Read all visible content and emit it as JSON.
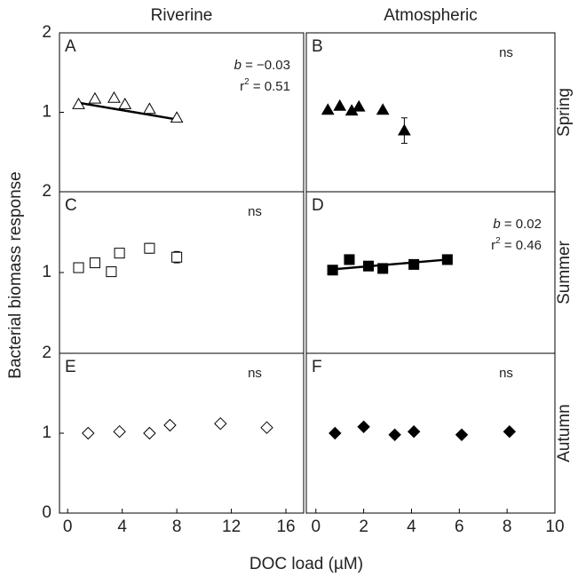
{
  "figure": {
    "y_label": "Bacterial biomass response",
    "x_label": "DOC load (µM)",
    "column_titles": [
      "Riverine",
      "Atmospheric"
    ],
    "row_titles": [
      "Spring",
      "Summer",
      "Autumn"
    ]
  },
  "chart_data": [
    {
      "type": "scatter",
      "panel": "A",
      "marker": "triangle",
      "filled": false,
      "color": "#000000",
      "x": [
        0.8,
        2,
        3.4,
        4.2,
        6,
        8
      ],
      "values": [
        1.1,
        1.17,
        1.18,
        1.1,
        1.04,
        0.93
      ],
      "fit": {
        "x": [
          0.8,
          8
        ],
        "y": [
          1.12,
          0.91
        ]
      },
      "annotation": [
        [
          {
            "text": "b",
            "italic": true
          },
          {
            "text": " = −0.03"
          }
        ],
        [
          {
            "text": "r"
          },
          {
            "text": "2",
            "sup": true
          },
          {
            "text": " = 0.51"
          }
        ]
      ],
      "xlim": [
        -0.6,
        17.3
      ],
      "ylim": [
        0,
        2
      ],
      "yticks": [
        1,
        2
      ]
    },
    {
      "type": "scatter",
      "panel": "B",
      "marker": "triangle",
      "filled": true,
      "color": "#000000",
      "x": [
        0.5,
        1.0,
        1.5,
        1.8,
        2.8,
        3.7
      ],
      "values": [
        1.03,
        1.08,
        1.02,
        1.07,
        1.03,
        0.77
      ],
      "errors": [
        null,
        null,
        null,
        null,
        null,
        0.16
      ],
      "annotation": [
        [
          {
            "text": "ns"
          }
        ]
      ],
      "xlim": [
        -0.4,
        10
      ],
      "ylim": [
        0,
        2
      ]
    },
    {
      "type": "scatter",
      "panel": "C",
      "marker": "square",
      "filled": false,
      "color": "#000000",
      "x": [
        0.8,
        2,
        3.2,
        3.8,
        6,
        8
      ],
      "values": [
        1.06,
        1.12,
        1.01,
        1.24,
        1.3,
        1.19
      ],
      "errors": [
        0.04,
        0.03,
        null,
        0.05,
        0.06,
        0.07
      ],
      "annotation": [
        [
          {
            "text": "ns"
          }
        ]
      ],
      "xlim": [
        -0.6,
        17.3
      ],
      "ylim": [
        0,
        2
      ],
      "yticks": [
        1,
        2
      ]
    },
    {
      "type": "scatter",
      "panel": "D",
      "marker": "square",
      "filled": true,
      "color": "#000000",
      "x": [
        0.7,
        1.4,
        2.2,
        2.8,
        4.1,
        5.5
      ],
      "values": [
        1.03,
        1.16,
        1.08,
        1.05,
        1.1,
        1.16
      ],
      "fit": {
        "x": [
          0.7,
          5.5
        ],
        "y": [
          1.04,
          1.16
        ]
      },
      "annotation": [
        [
          {
            "text": "b",
            "italic": true
          },
          {
            "text": " = 0.02"
          }
        ],
        [
          {
            "text": "r"
          },
          {
            "text": "2",
            "sup": true
          },
          {
            "text": " = 0.46"
          }
        ]
      ],
      "xlim": [
        -0.4,
        10
      ],
      "ylim": [
        0,
        2
      ]
    },
    {
      "type": "scatter",
      "panel": "E",
      "marker": "diamond",
      "filled": false,
      "color": "#000000",
      "x": [
        1.5,
        3.8,
        6,
        7.5,
        11.2,
        14.6
      ],
      "values": [
        1.0,
        1.02,
        1.0,
        1.1,
        1.12,
        1.07
      ],
      "annotation": [
        [
          {
            "text": "ns"
          }
        ]
      ],
      "xlim": [
        -0.6,
        17.3
      ],
      "xticks": [
        0,
        4,
        8,
        12,
        16
      ],
      "ylim": [
        0,
        2
      ],
      "yticks": [
        0,
        1,
        2
      ]
    },
    {
      "type": "scatter",
      "panel": "F",
      "marker": "diamond",
      "filled": true,
      "color": "#000000",
      "x": [
        0.8,
        2,
        3.3,
        4.1,
        6.1,
        8.1
      ],
      "values": [
        1.0,
        1.08,
        0.98,
        1.02,
        0.98,
        1.02
      ],
      "annotation": [
        [
          {
            "text": "ns"
          }
        ]
      ],
      "xlim": [
        -0.4,
        10
      ],
      "xticks": [
        0,
        2,
        4,
        6,
        8,
        10
      ],
      "ylim": [
        0,
        2
      ]
    }
  ]
}
